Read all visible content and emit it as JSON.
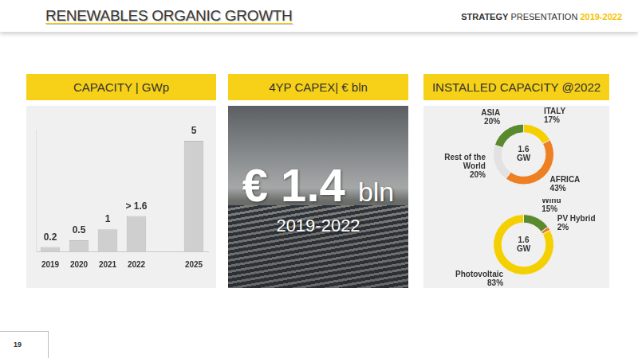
{
  "page": {
    "title": "RENEWABLES ORGANIC GROWTH",
    "header_right": [
      "STRATEGY",
      "PRESENTATION",
      "2019-2022"
    ],
    "page_number": "19",
    "capex_panel": {
      "title": "4YP CAPEX| € bln",
      "amount": "€ 1.4",
      "unit": "bln",
      "period": "2019-2022"
    },
    "installed_title": "INSTALLED CAPACITY @2022"
  },
  "chart_data": [
    {
      "type": "bar",
      "title": "CAPACITY | GWp",
      "categories": [
        "2019",
        "2020",
        "2021",
        "2022",
        null,
        "2025"
      ],
      "values": [
        0.2,
        0.5,
        1,
        1.6,
        null,
        5
      ],
      "value_labels": [
        "0.2",
        "0.5",
        "1",
        "> 1.6",
        null,
        "5"
      ],
      "color": "#cfcfcf",
      "ylim": [
        0,
        5.5
      ],
      "grid": false,
      "tick_labels": "x",
      "data_labels": true
    },
    {
      "type": "doughnut",
      "categories": [
        "ITALY",
        "AFRICA",
        "Rest of the World",
        "ASIA"
      ],
      "values": [
        17,
        43,
        20,
        20
      ],
      "value_labels": [
        "17%",
        "43%",
        "20%",
        "20%"
      ],
      "colors": [
        "#f5d000",
        "#ee7f22",
        "#e2e2e2",
        "#5a8a2e"
      ],
      "center_label": "1.6 GW",
      "data_labels": true
    },
    {
      "type": "doughnut",
      "categories": [
        "Wind",
        "PV Hybrid",
        "Photovoltaic"
      ],
      "values": [
        15,
        2,
        83
      ],
      "value_labels": [
        "15%",
        "2%",
        "83%"
      ],
      "colors": [
        "#5a8a2e",
        "#ee7f22",
        "#f5d000"
      ],
      "center_label": "1.6 GW",
      "data_labels": true
    }
  ]
}
